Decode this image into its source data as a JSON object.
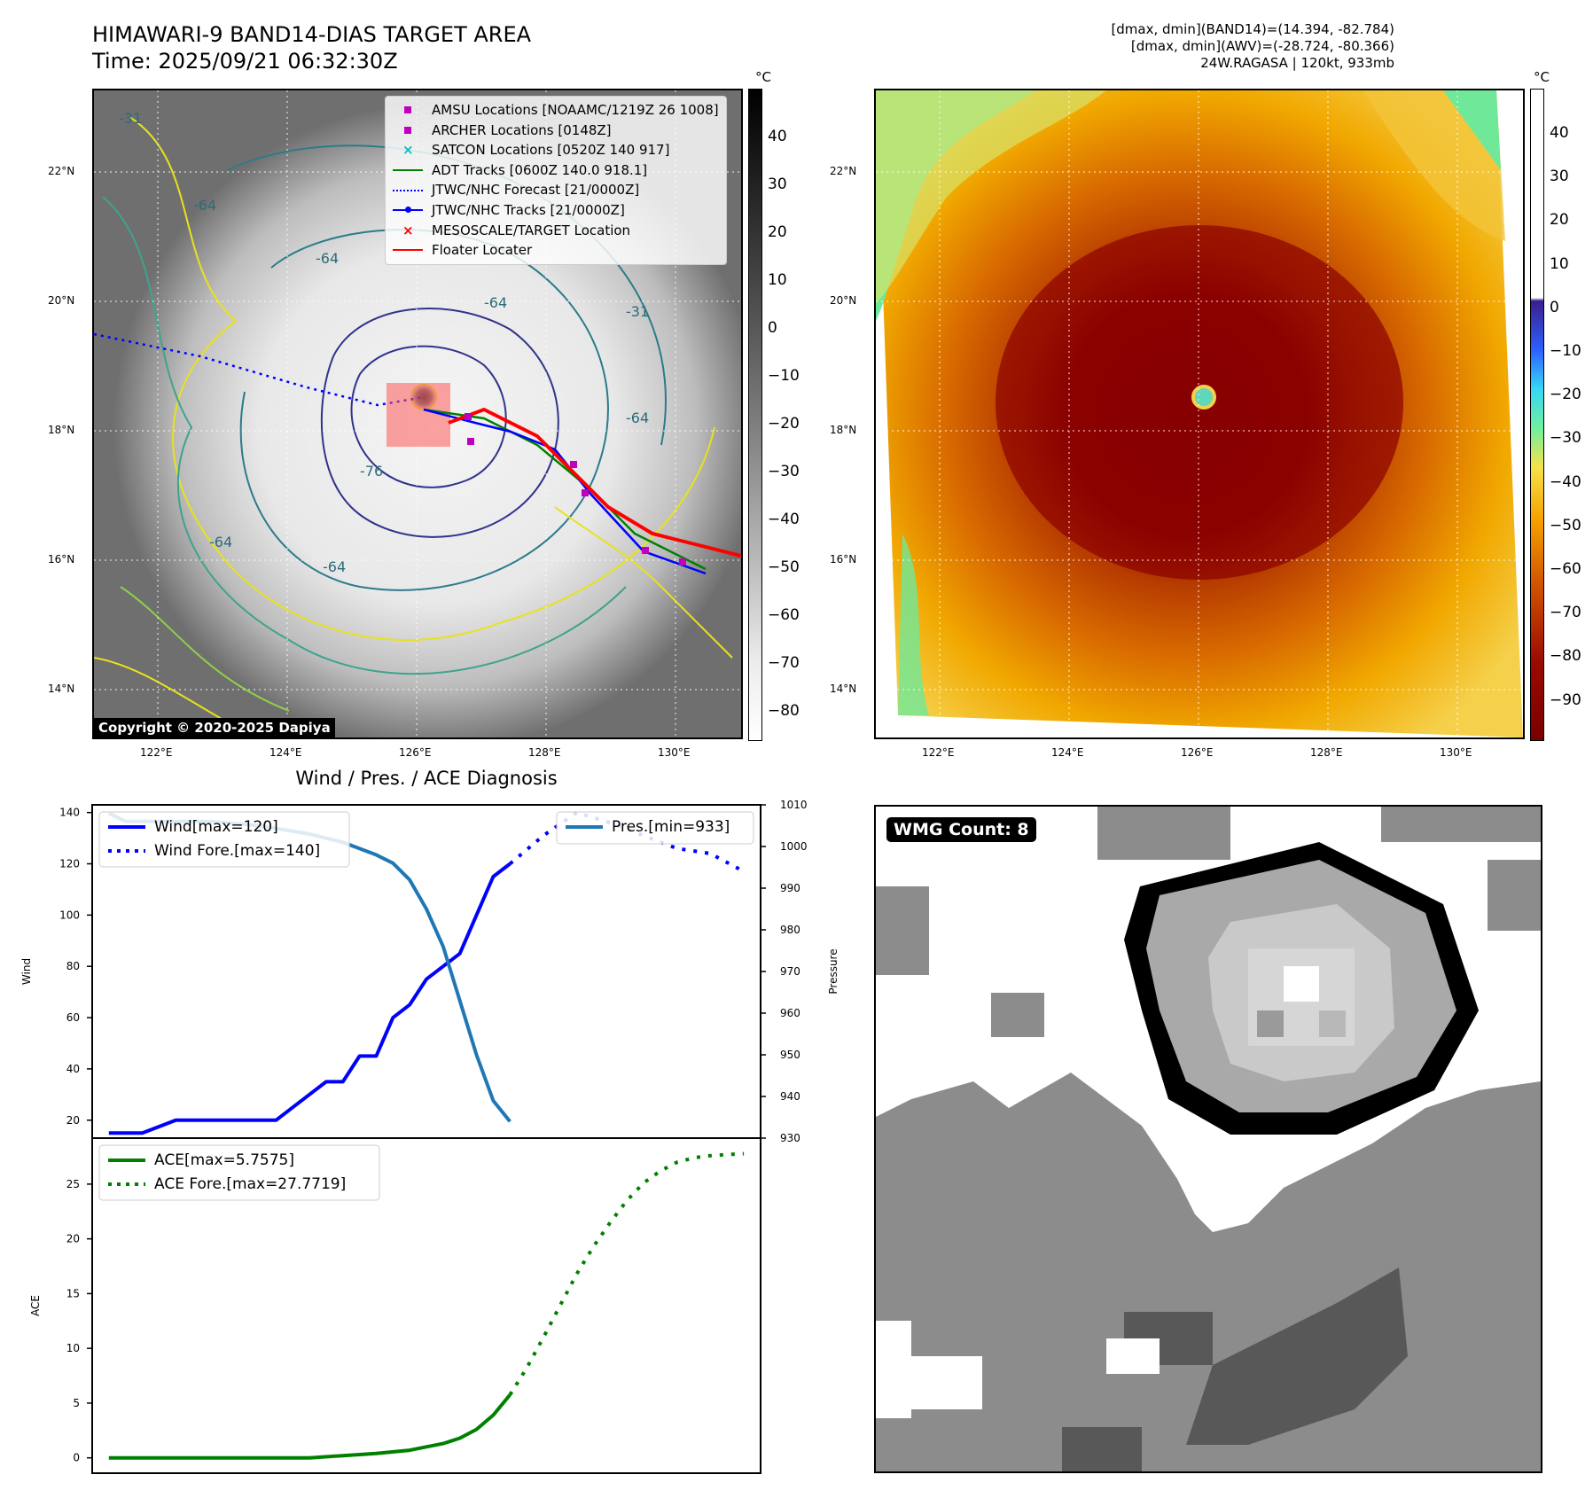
{
  "title_line1": "HIMAWARI-9 BAND14-DIAS TARGET AREA",
  "title_line2": "Time: 2025/09/21 06:32:30Z",
  "info": {
    "band14": "[dmax, dmin](BAND14)=(14.394, -82.784)",
    "awv": "[dmax, dmin](AWV)=(-28.724, -80.366)",
    "storm": "24W.RAGASA | 120kt, 933mb"
  },
  "colorbar_unit": "°C",
  "colorbar_left_ticks": [
    "40",
    "30",
    "20",
    "10",
    "0",
    "−10",
    "−20",
    "−30",
    "−40",
    "−50",
    "−60",
    "−70",
    "−80"
  ],
  "colorbar_right_ticks": [
    "40",
    "30",
    "20",
    "10",
    "0",
    "−10",
    "−20",
    "−30",
    "−40",
    "−50",
    "−60",
    "−70",
    "−80",
    "−90"
  ],
  "map_lat_labels": [
    "22°N",
    "20°N",
    "18°N",
    "16°N",
    "14°N"
  ],
  "map_lon_labels": [
    "122°E",
    "124°E",
    "126°E",
    "128°E",
    "130°E"
  ],
  "contour_labels": [
    "-31",
    "-64",
    "-64",
    "-64",
    "-76",
    "-64",
    "-64",
    "-31",
    "-64"
  ],
  "copyright": "Copyright © 2020-2025 Dapiya",
  "legend": [
    {
      "label": "AMSU Locations [NOAAMC/1219Z 26 1008]",
      "color": "#c000c0",
      "symbol": "square"
    },
    {
      "label": "ARCHER Locations [0148Z]",
      "color": "#c000c0",
      "symbol": "square"
    },
    {
      "label": "SATCON Locations [0520Z 140 917]",
      "color": "#00c0c0",
      "symbol": "x"
    },
    {
      "label": "ADT Tracks [0600Z 140.0 918.1]",
      "color": "#008000",
      "symbol": "line"
    },
    {
      "label": "JTWC/NHC Forecast [21/0000Z]",
      "color": "#0000ff",
      "symbol": "dotted"
    },
    {
      "label": "JTWC/NHC Tracks [21/0000Z]",
      "color": "#0000ff",
      "symbol": "line-dot"
    },
    {
      "label": "MESOSCALE/TARGET Location",
      "color": "#ff0000",
      "symbol": "x"
    },
    {
      "label": "Floater Locater",
      "color": "#ff0000",
      "symbol": "line"
    }
  ],
  "diag_title": "Wind / Pres. / ACE Diagnosis",
  "wmg_badge": "WMG Count: 8",
  "chart_data": [
    {
      "type": "line",
      "title": "Wind / Pres. / ACE Diagnosis",
      "ylabel": "Wind",
      "ylabel_right": "Pressure",
      "ylim": [
        13,
        143
      ],
      "ylim_right": [
        930,
        1010
      ],
      "yticks": [
        20,
        40,
        60,
        80,
        100,
        120,
        140
      ],
      "yticks_right": [
        930,
        940,
        950,
        960,
        970,
        980,
        990,
        1000,
        1010
      ],
      "xlim": [
        0,
        40
      ],
      "series": [
        {
          "name": "Wind[max=120]",
          "axis": "left",
          "color": "#0000ff",
          "style": "solid",
          "x": [
            1,
            3,
            5,
            7,
            9,
            11,
            12,
            13,
            14,
            15,
            16,
            17,
            18,
            19,
            20,
            21
          ],
          "y": [
            15,
            15,
            20,
            20,
            20,
            20,
            25,
            30,
            35,
            35,
            45,
            45,
            60,
            65,
            75,
            80
          ]
        },
        {
          "name": "Wind[max=120] (cont)",
          "axis": "left",
          "color": "#0000ff",
          "style": "solid",
          "legend": false,
          "x": [
            21,
            22,
            23,
            24,
            25
          ],
          "y": [
            80,
            85,
            100,
            115,
            120
          ]
        },
        {
          "name": "Wind Fore.[max=140]",
          "axis": "left",
          "color": "#0000ff",
          "style": "dotted",
          "x": [
            25,
            27,
            29,
            31,
            33,
            35,
            37,
            39
          ],
          "y": [
            120,
            131,
            140,
            136,
            131,
            126,
            124,
            117
          ]
        },
        {
          "name": "Pres.[min=933]",
          "axis": "right",
          "color": "#1f77b4",
          "style": "solid",
          "x": [
            1,
            2,
            3,
            5,
            7,
            10,
            13,
            15,
            17,
            18,
            19,
            20,
            21,
            22,
            23,
            24,
            25
          ],
          "y": [
            1008,
            1006,
            1006,
            1006,
            1006,
            1005,
            1003,
            1001,
            998,
            996,
            992,
            985,
            976,
            963,
            950,
            939,
            934
          ]
        }
      ]
    },
    {
      "type": "line",
      "ylabel": "ACE",
      "ylim": [
        -1.4,
        29.2
      ],
      "yticks": [
        0,
        5,
        10,
        15,
        20,
        25
      ],
      "xlim": [
        0,
        40
      ],
      "series": [
        {
          "name": "ACE[max=5.7575]",
          "color": "#008000",
          "style": "solid",
          "x": [
            1,
            3,
            5,
            7,
            9,
            11,
            13,
            15,
            17,
            19,
            21,
            22,
            23,
            24,
            25
          ],
          "y": [
            0,
            0,
            0,
            0,
            0,
            0,
            0,
            0.2,
            0.4,
            0.7,
            1.3,
            1.8,
            2.6,
            3.9,
            5.7575
          ]
        },
        {
          "name": "ACE Fore.[max=27.7719]",
          "color": "#008000",
          "style": "dotted",
          "x": [
            25,
            26,
            27,
            28,
            29,
            30,
            31,
            32,
            33,
            34,
            35,
            36,
            37,
            38,
            39
          ],
          "y": [
            5.7575,
            8.2,
            11.0,
            13.9,
            16.8,
            19.3,
            21.5,
            23.5,
            25.1,
            26.2,
            27.0,
            27.4,
            27.6,
            27.7,
            27.7719
          ]
        }
      ]
    }
  ]
}
